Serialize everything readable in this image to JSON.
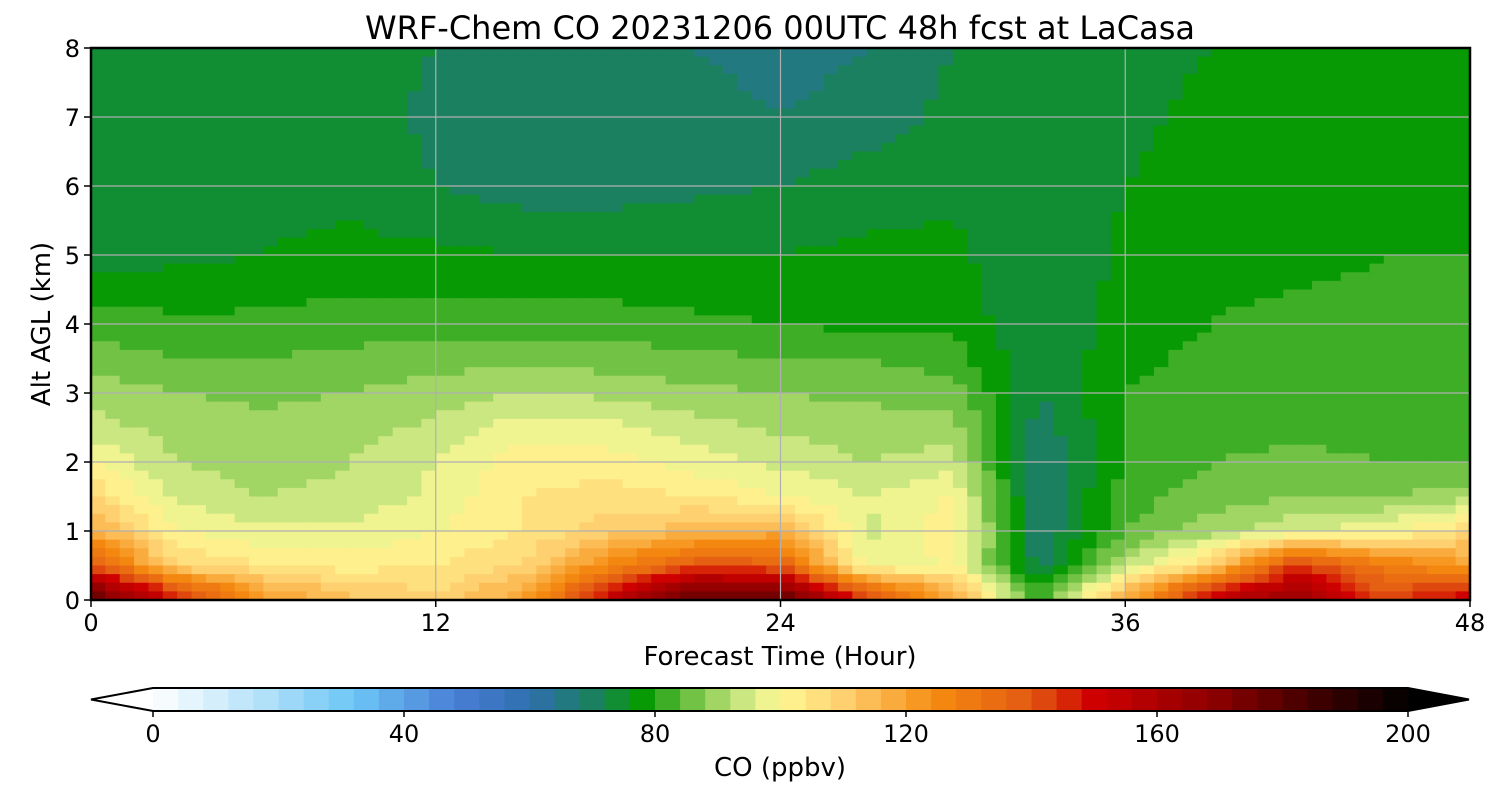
{
  "chart_data": {
    "type": "heatmap",
    "title": "WRF-Chem CO  20231206 00UTC 48h fcst at LaCasa",
    "xlabel": "Forecast Time (Hour)",
    "ylabel": "Alt AGL (km)",
    "xlim": [
      0,
      48
    ],
    "ylim": [
      0,
      8
    ],
    "x_ticks": [
      "0",
      "12",
      "24",
      "36",
      "48"
    ],
    "y_ticks": [
      "0",
      "1",
      "2",
      "3",
      "4",
      "5",
      "6",
      "7",
      "8"
    ],
    "grid": true,
    "x": [
      0,
      3,
      6,
      9,
      12,
      15,
      18,
      21,
      24,
      27,
      30,
      33,
      36,
      39,
      42,
      45,
      48
    ],
    "y": [
      0.1,
      0.5,
      1,
      1.5,
      2,
      2.5,
      3,
      3.5,
      4,
      5,
      6,
      7,
      8
    ],
    "z": [
      [
        175,
        145,
        120,
        112,
        108,
        118,
        150,
        175,
        175,
        140,
        118,
        80,
        115,
        150,
        165,
        140,
        150
      ],
      [
        140,
        108,
        104,
        102,
        104,
        108,
        125,
        140,
        138,
        98,
        100,
        70,
        92,
        110,
        145,
        130,
        120
      ],
      [
        118,
        100,
        97,
        97,
        100,
        104,
        110,
        115,
        118,
        95,
        103,
        68,
        84,
        90,
        96,
        98,
        108
      ],
      [
        108,
        95,
        92,
        93,
        97,
        104,
        106,
        104,
        100,
        96,
        100,
        68,
        82,
        86,
        88,
        88,
        90
      ],
      [
        100,
        92,
        90,
        92,
        96,
        102,
        102,
        98,
        95,
        92,
        94,
        68,
        80,
        84,
        85,
        84,
        84
      ],
      [
        94,
        90,
        89,
        90,
        93,
        98,
        97,
        94,
        91,
        90,
        90,
        70,
        80,
        82,
        83,
        83,
        82
      ],
      [
        90,
        88,
        87,
        88,
        90,
        92,
        91,
        89,
        88,
        87,
        86,
        72,
        80,
        82,
        82,
        83,
        82
      ],
      [
        86,
        84,
        84,
        85,
        86,
        87,
        86,
        85,
        84,
        84,
        82,
        72,
        79,
        81,
        82,
        82,
        82
      ],
      [
        82,
        81,
        81,
        82,
        82,
        82,
        82,
        81,
        80,
        79,
        79,
        72,
        78,
        80,
        81,
        81,
        81
      ],
      [
        74,
        75,
        76,
        77,
        77,
        76,
        76,
        76,
        76,
        77,
        77,
        72,
        77,
        79,
        79,
        80,
        80
      ],
      [
        72,
        74,
        75,
        75,
        72,
        70,
        70,
        71,
        72,
        74,
        75,
        72,
        76,
        78,
        79,
        79,
        79
      ],
      [
        74,
        74,
        75,
        74,
        71,
        69,
        69,
        70,
        68,
        70,
        73,
        73,
        75,
        77,
        77,
        77,
        77
      ],
      [
        75,
        75,
        75,
        74,
        72,
        70,
        69,
        68,
        66,
        68,
        72,
        74,
        75,
        76,
        76,
        76,
        76
      ]
    ],
    "colorbar": {
      "label": "CO  (ppbv)",
      "min": 0,
      "max": 200,
      "ticks": [
        "0",
        "40",
        "80",
        "120",
        "160",
        "200"
      ],
      "extend": "both",
      "colors": [
        {
          "v": 0,
          "c": "#ffffff"
        },
        {
          "v": 20,
          "c": "#a8dcf8"
        },
        {
          "v": 32,
          "c": "#6cc6f6"
        },
        {
          "v": 48,
          "c": "#4a7fd6"
        },
        {
          "v": 60,
          "c": "#2f6fb0"
        },
        {
          "v": 70,
          "c": "#1a8060"
        },
        {
          "v": 78,
          "c": "#089a05"
        },
        {
          "v": 88,
          "c": "#8ccc55"
        },
        {
          "v": 95,
          "c": "#d6ec88"
        },
        {
          "v": 100,
          "c": "#fff896"
        },
        {
          "v": 110,
          "c": "#fed070"
        },
        {
          "v": 125,
          "c": "#f58a10"
        },
        {
          "v": 140,
          "c": "#e25a12"
        },
        {
          "v": 150,
          "c": "#cf0000"
        },
        {
          "v": 170,
          "c": "#880000"
        },
        {
          "v": 185,
          "c": "#400000"
        },
        {
          "v": 200,
          "c": "#000000"
        }
      ]
    }
  }
}
